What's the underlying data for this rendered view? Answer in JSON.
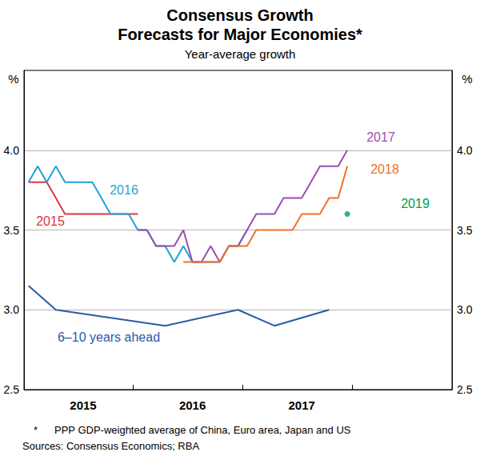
{
  "chart_data": {
    "type": "line",
    "title": "Consensus Growth\nForecasts for Major Economies*",
    "subtitle": "Year-average growth",
    "ylabel": "%",
    "y2label": "%",
    "note_marker": "*",
    "note": "PPP GDP-weighted average of China, Euro area, Japan and US",
    "source": "Sources: Consensus Economics; RBA",
    "categories": [
      null,
      null,
      null,
      null,
      null,
      null,
      "2015",
      null,
      null,
      null,
      null,
      null,
      null,
      null,
      null,
      null,
      null,
      null,
      "2016",
      null,
      null,
      null,
      null,
      null,
      null,
      null,
      null,
      null,
      null,
      null,
      "2017",
      null,
      null,
      null,
      null,
      null,
      null,
      null,
      null,
      null,
      null,
      null,
      null,
      null,
      null,
      null,
      null
    ],
    "ylim": [
      2.5,
      4.5
    ],
    "yticks": [
      2.5,
      {
        "value": 3,
        "label": "3.0"
      },
      3.5,
      {
        "value": 4,
        "label": "4.0"
      }
    ],
    "y2lim": [
      2.5,
      4.5
    ],
    "y2ticks": [
      2.5,
      {
        "value": 3,
        "label": "3.0"
      },
      3.5,
      {
        "value": 4,
        "label": "4.0"
      }
    ],
    "grid": true,
    "series": [
      {
        "name": "2015",
        "type": "line",
        "color": "#e2343e",
        "values": [
          3.8,
          3.8,
          3.8,
          3.7,
          3.6,
          3.6,
          3.6,
          3.6,
          3.6,
          3.6,
          3.6,
          3.6,
          3.6,
          null,
          null,
          null,
          null,
          null,
          null,
          null,
          null,
          null,
          null,
          null,
          null,
          null,
          null,
          null,
          null,
          null,
          null,
          null,
          null,
          null,
          null,
          null,
          null,
          null,
          null,
          null,
          null,
          null,
          null,
          null,
          null,
          null,
          null
        ]
      },
      {
        "name": "2016",
        "type": "line",
        "color": "#1fa3d8",
        "values": [
          3.8,
          3.9,
          3.8,
          3.9,
          3.8,
          3.8,
          3.8,
          3.8,
          3.7,
          3.6,
          3.6,
          3.6,
          3.5,
          3.5,
          3.4,
          3.4,
          3.3,
          3.4,
          3.3,
          3.3,
          3.3,
          3.3,
          3.4,
          3.4,
          3.5,
          null,
          null,
          null,
          null,
          null,
          null,
          null,
          null,
          null,
          null,
          null,
          null,
          null,
          null,
          null,
          null,
          null,
          null,
          null,
          null,
          null,
          null
        ]
      },
      {
        "name": "2017",
        "type": "line",
        "color": "#9c4fae",
        "values": [
          null,
          null,
          null,
          null,
          null,
          null,
          null,
          null,
          null,
          null,
          null,
          null,
          3.5,
          3.5,
          3.4,
          3.4,
          3.4,
          3.5,
          3.3,
          3.3,
          3.4,
          3.3,
          3.4,
          3.4,
          3.5,
          3.6,
          3.6,
          3.6,
          3.7,
          3.7,
          3.7,
          3.8,
          3.9,
          3.9,
          3.9,
          4.0,
          null,
          null,
          null,
          null,
          null,
          null,
          null,
          null,
          null,
          null,
          null
        ]
      },
      {
        "name": "2018",
        "type": "line",
        "color": "#f26f2b",
        "values": [
          null,
          null,
          null,
          null,
          null,
          null,
          null,
          null,
          null,
          null,
          null,
          null,
          null,
          null,
          null,
          null,
          null,
          3.3,
          3.3,
          3.3,
          3.3,
          3.3,
          3.4,
          3.4,
          3.4,
          3.5,
          3.5,
          3.5,
          3.5,
          3.5,
          3.6,
          3.6,
          3.6,
          3.7,
          3.7,
          3.9,
          null,
          null,
          null,
          null,
          null,
          null,
          null,
          null,
          null,
          null,
          null
        ]
      },
      {
        "name": "2019",
        "type": "scatter",
        "marker": "circle",
        "color": "#00a04f",
        "values": [
          null,
          null,
          null,
          null,
          null,
          null,
          null,
          null,
          null,
          null,
          null,
          null,
          null,
          null,
          null,
          null,
          null,
          null,
          null,
          null,
          null,
          null,
          null,
          null,
          null,
          null,
          null,
          null,
          null,
          null,
          null,
          null,
          null,
          null,
          null,
          3.6,
          null,
          null,
          null,
          null,
          null,
          null,
          null,
          null,
          null,
          null,
          null
        ]
      },
      {
        "name": "6–10 years ahead",
        "type": "line",
        "color": "#2a5ba8",
        "values": [
          3.15,
          null,
          null,
          3.0,
          null,
          null,
          null,
          null,
          null,
          2.95,
          null,
          null,
          null,
          null,
          null,
          2.9,
          null,
          null,
          null,
          null,
          null,
          null,
          null,
          3.0,
          null,
          null,
          null,
          2.9,
          null,
          null,
          null,
          null,
          null,
          3.0,
          null,
          null,
          null,
          null,
          null,
          null,
          null,
          null,
          null,
          null,
          null,
          null,
          null
        ]
      }
    ]
  }
}
